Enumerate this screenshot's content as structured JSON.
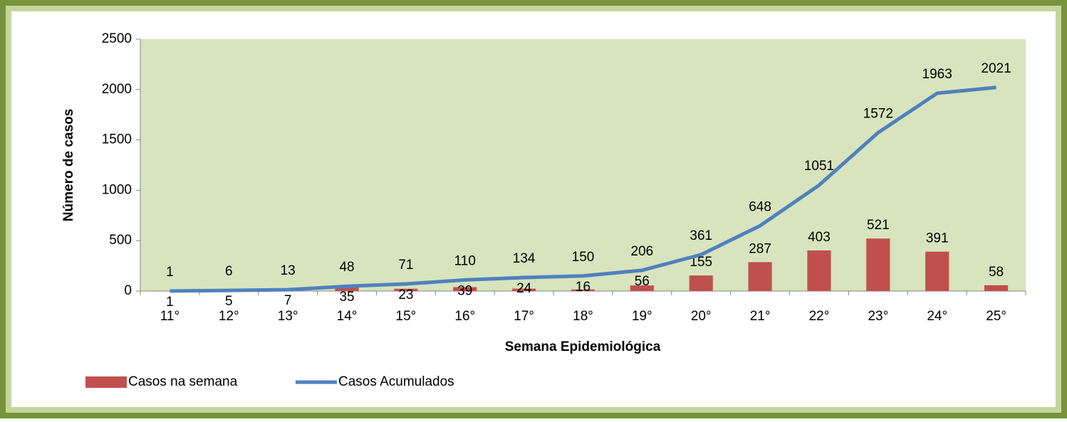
{
  "chart_data": {
    "type": "bar",
    "x_label": "Semana Epidemiológica",
    "y_label": "Número de casos",
    "categories": [
      "11°",
      "12°",
      "13°",
      "14°",
      "15°",
      "16°",
      "17°",
      "18°",
      "19°",
      "20°",
      "21°",
      "22°",
      "23°",
      "24°",
      "25°"
    ],
    "series": [
      {
        "name": "Casos na semana",
        "type": "bar",
        "color": "#c0504d",
        "values": [
          1,
          5,
          7,
          35,
          23,
          39,
          24,
          16,
          56,
          155,
          287,
          403,
          521,
          391,
          58
        ]
      },
      {
        "name": "Casos Acumulados",
        "type": "line",
        "color": "#4f81bd",
        "values": [
          1,
          6,
          13,
          48,
          71,
          110,
          134,
          150,
          206,
          361,
          648,
          1051,
          1572,
          1963,
          2021
        ]
      }
    ],
    "ylim": [
      0,
      2500
    ],
    "yticks": [
      0,
      500,
      1000,
      1500,
      2000,
      2500
    ]
  }
}
